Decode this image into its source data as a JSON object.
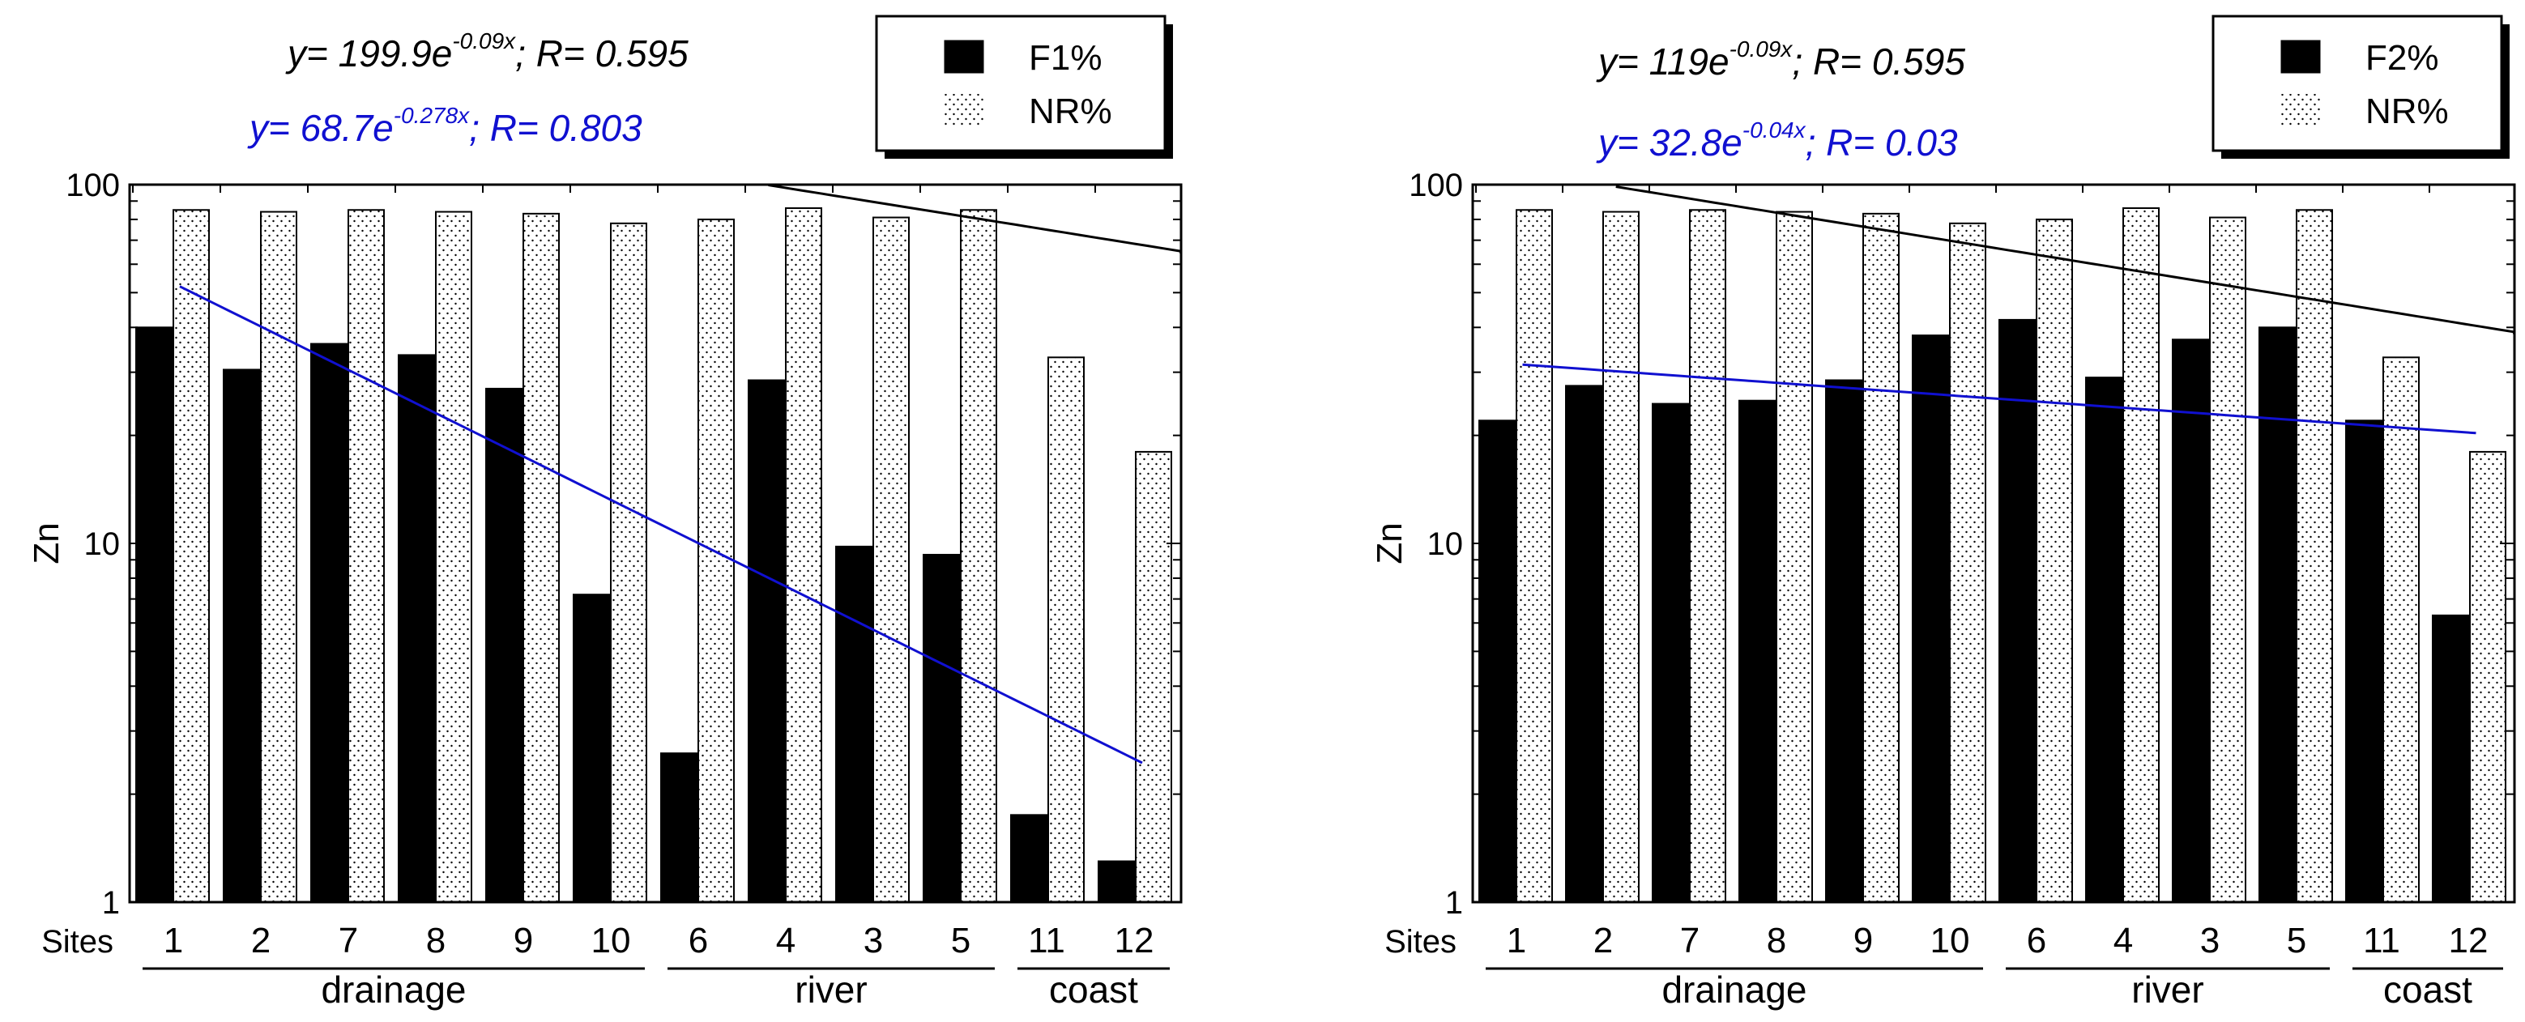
{
  "chart_data": [
    {
      "type": "bar",
      "ylabel": "Zn",
      "yscale": "log",
      "ylim": [
        1,
        100
      ],
      "y_ticks": [
        "1",
        "10",
        "100"
      ],
      "x_prefix": "Sites",
      "categories": [
        "1",
        "2",
        "7",
        "8",
        "9",
        "10",
        "6",
        "4",
        "3",
        "5",
        "11",
        "12"
      ],
      "groups": [
        {
          "name": "drainage",
          "from": 0,
          "to": 5
        },
        {
          "name": "river",
          "from": 6,
          "to": 9
        },
        {
          "name": "coast",
          "from": 10,
          "to": 11
        }
      ],
      "series": [
        {
          "name": "F1%",
          "style": "solid",
          "values": [
            40,
            30.5,
            36,
            33.5,
            27,
            7.2,
            2.6,
            28.5,
            9.8,
            9.3,
            1.75,
            1.3
          ]
        },
        {
          "name": "NR%",
          "style": "dotted",
          "values": [
            85,
            84,
            85,
            84,
            83,
            78,
            80,
            86,
            81,
            85,
            33,
            18
          ]
        }
      ],
      "fits": [
        {
          "equation": {
            "prefix": "y= 199.9e",
            "exponent": "-0.09x",
            "suffix": "; R= 0.595"
          },
          "a": 199.9,
          "b": -0.09,
          "x_from": 1.7,
          "x_to": 13,
          "color": "#000000"
        },
        {
          "equation": {
            "prefix": "y= 68.7e",
            "exponent": "-0.278x",
            "suffix": "; R= 0.803"
          },
          "a": 68.7,
          "b": -0.278,
          "x_from": 1,
          "x_to": 12,
          "color": "#1010d0"
        }
      ]
    },
    {
      "type": "bar",
      "ylabel": "Zn",
      "yscale": "log",
      "ylim": [
        1,
        100
      ],
      "y_ticks": [
        "1",
        "10",
        "100"
      ],
      "x_prefix": "Sites",
      "categories": [
        "1",
        "2",
        "7",
        "8",
        "9",
        "10",
        "6",
        "4",
        "3",
        "5",
        "11",
        "12"
      ],
      "groups": [
        {
          "name": "drainage",
          "from": 0,
          "to": 5
        },
        {
          "name": "river",
          "from": 6,
          "to": 9
        },
        {
          "name": "coast",
          "from": 10,
          "to": 11
        }
      ],
      "series": [
        {
          "name": "F2%",
          "style": "solid",
          "values": [
            22,
            27.5,
            24.5,
            25,
            28.5,
            38,
            42,
            29,
            37,
            40,
            22,
            6.3
          ]
        },
        {
          "name": "NR%",
          "style": "dotted",
          "values": [
            85,
            84,
            85,
            84,
            83,
            78,
            80,
            86,
            81,
            85,
            33,
            18
          ]
        }
      ],
      "fits": [
        {
          "equation": {
            "prefix": "y= 119e",
            "exponent": "-0.09x",
            "suffix": "; R= 0.595"
          },
          "a": 119,
          "b": -0.09,
          "x_from": 1.7,
          "x_to": 13,
          "color": "#000000"
        },
        {
          "equation": {
            "prefix": "y= 32.8e",
            "exponent": "-0.04x",
            "suffix": "; R= 0.03"
          },
          "a": 32.8,
          "b": -0.04,
          "x_from": 1,
          "x_to": 12,
          "color": "#1010d0"
        }
      ]
    }
  ]
}
